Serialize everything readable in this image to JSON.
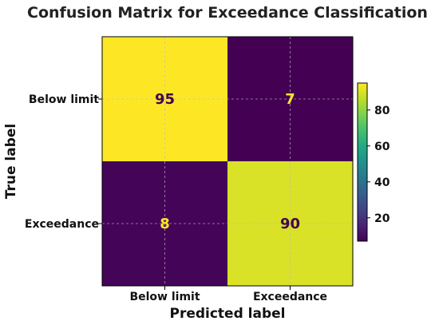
{
  "chart_data": {
    "type": "heatmap",
    "title": "Confusion Matrix for Exceedance Classification",
    "xlabel": "Predicted label",
    "ylabel": "True label",
    "x_categories": [
      "Below limit",
      "Exceedance"
    ],
    "y_categories": [
      "Below limit",
      "Exceedance"
    ],
    "matrix": [
      [
        95,
        7
      ],
      [
        8,
        90
      ]
    ],
    "colormap": "viridis",
    "value_range": [
      7,
      95
    ],
    "colorbar_ticks": [
      20,
      40,
      60,
      80
    ],
    "grid": true
  },
  "colors": {
    "dark_text_on_light": "#440154",
    "light_text_on_dark": "#fde725",
    "grid_line": "#bbbbbb"
  }
}
